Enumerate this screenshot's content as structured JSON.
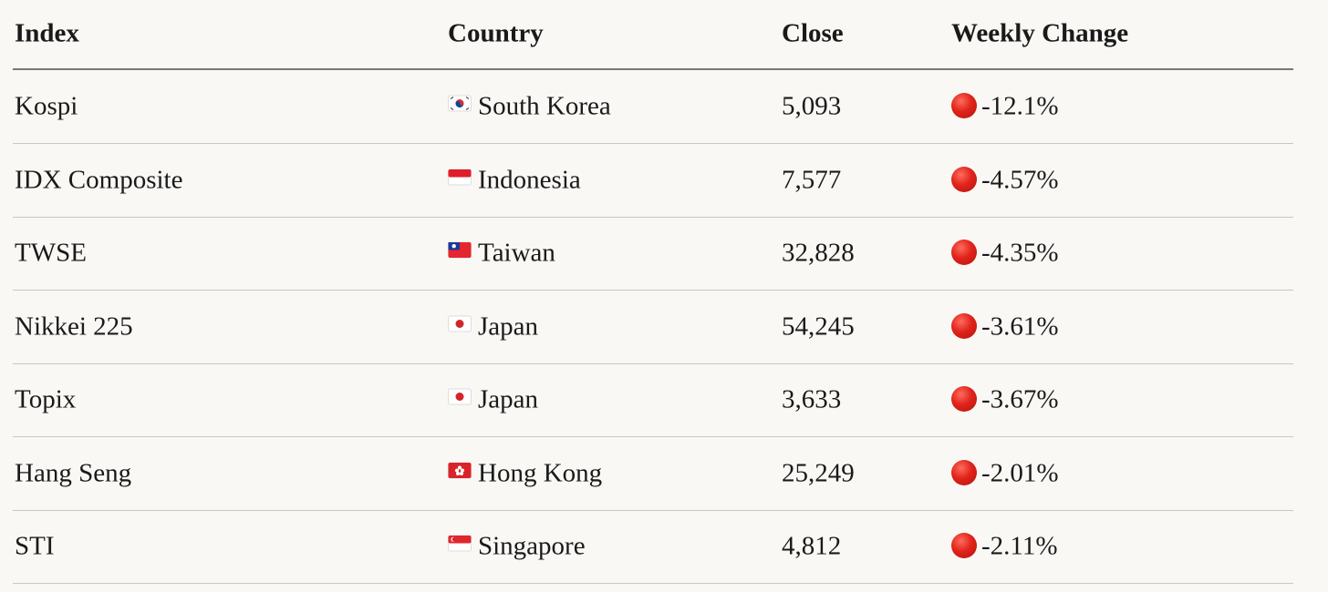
{
  "table": {
    "header": [
      "Index",
      "Country",
      "Close",
      "Weekly Change"
    ],
    "rows": [
      [
        "Kospi",
        "South Korea",
        "5,093",
        "-12.1%"
      ],
      [
        "IDX Composite",
        "Indonesia",
        "7,577",
        "-4.57%"
      ],
      [
        "TWSE",
        "Taiwan",
        "32,828",
        "-4.35%"
      ],
      [
        "Nikkei 225",
        "Japan",
        "54,245",
        "-3.61%"
      ],
      [
        "Topix",
        "Japan",
        "3,633",
        "-3.67%"
      ],
      [
        "Hang Seng",
        "Hong Kong",
        "25,249",
        "-2.01%"
      ],
      [
        "STI",
        "Singapore",
        "4,812",
        "-2.11%"
      ]
    ]
  }
}
